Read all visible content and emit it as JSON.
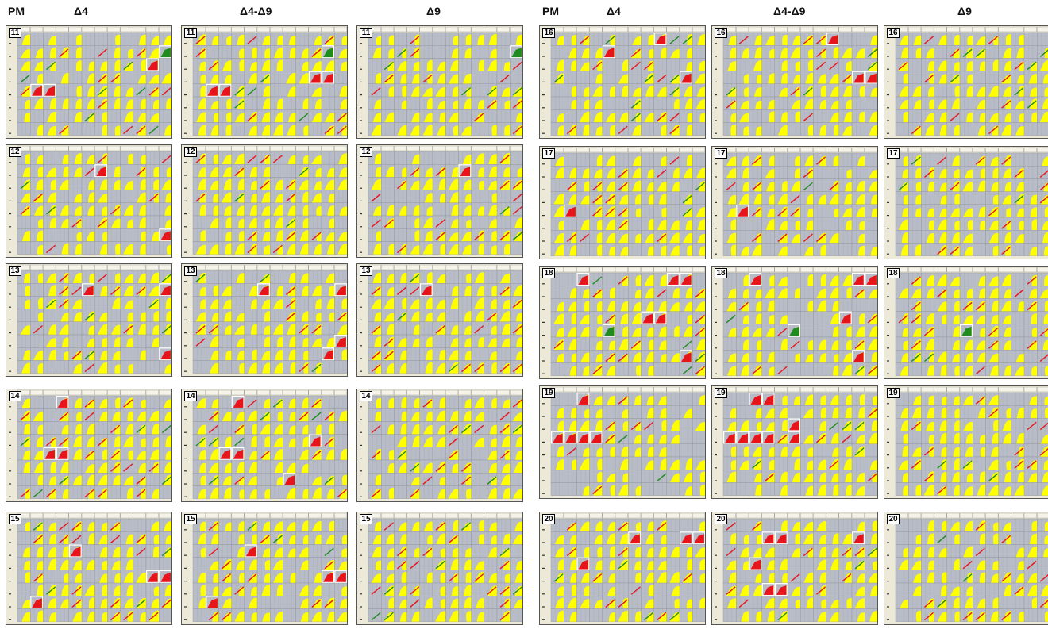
{
  "headers": {
    "left": {
      "pm": "PM",
      "d4": "Δ4",
      "d49": "Δ4-Δ9",
      "d9": "Δ9"
    },
    "right": {
      "pm": "PM",
      "d4": "Δ4",
      "d49": "Δ4-Δ9",
      "d9": "Δ9"
    }
  },
  "colors": {
    "panel_bg": "#ece9d8",
    "well_gray": "#b8bcc6",
    "curve_yellow": "#ffff00",
    "gain_red": "#e8141c",
    "loss_green": "#1e8c1e",
    "highlight_border": "#ffffff"
  },
  "chart_data": {
    "type": "heatmap",
    "description_rows": [
      "A",
      "B",
      "C",
      "D",
      "E",
      "F",
      "G",
      "H"
    ],
    "columns": [
      1,
      2,
      3,
      4,
      5,
      6,
      7,
      8,
      9,
      10,
      11,
      12
    ],
    "columns_labels": [
      "Δ4",
      "Δ4-Δ9",
      "Δ9"
    ],
    "plates": [
      {
        "pm": "11",
        "side": "left",
        "row": 0
      },
      {
        "pm": "12",
        "side": "left",
        "row": 1
      },
      {
        "pm": "13",
        "side": "left",
        "row": 2
      },
      {
        "pm": "14",
        "side": "left",
        "row": 3
      },
      {
        "pm": "15",
        "side": "left",
        "row": 4
      },
      {
        "pm": "16",
        "side": "right",
        "row": 0
      },
      {
        "pm": "17",
        "side": "right",
        "row": 1
      },
      {
        "pm": "18",
        "side": "right",
        "row": 2
      },
      {
        "pm": "19",
        "side": "right",
        "row": 3
      },
      {
        "pm": "20",
        "side": "right",
        "row": 4
      }
    ],
    "highlighted_wells": {
      "11": {
        "d4": [
          [
            5,
            2,
            "r"
          ],
          [
            5,
            3,
            "r"
          ],
          [
            3,
            11,
            "r"
          ],
          [
            2,
            12,
            "g"
          ]
        ],
        "d49": [
          [
            5,
            2,
            "r"
          ],
          [
            5,
            3,
            "r"
          ],
          [
            4,
            10,
            "r"
          ],
          [
            4,
            11,
            "r"
          ],
          [
            2,
            11,
            "g"
          ]
        ],
        "d9": [
          [
            2,
            12,
            "g"
          ]
        ]
      },
      "12": {
        "d4": [
          [
            2,
            7,
            "r"
          ],
          [
            7,
            12,
            "r"
          ]
        ],
        "d49": [],
        "d9": [
          [
            2,
            8,
            "r"
          ]
        ]
      },
      "13": {
        "d4": [
          [
            2,
            6,
            "r"
          ],
          [
            2,
            12,
            "r"
          ],
          [
            7,
            12,
            "r"
          ]
        ],
        "d49": [
          [
            2,
            6,
            "r"
          ],
          [
            2,
            12,
            "r"
          ],
          [
            6,
            12,
            "r"
          ],
          [
            7,
            11,
            "r"
          ]
        ],
        "d9": [
          [
            2,
            5,
            "r"
          ]
        ]
      },
      "14": {
        "d4": [
          [
            1,
            4,
            "r"
          ],
          [
            5,
            3,
            "r"
          ],
          [
            5,
            4,
            "r"
          ]
        ],
        "d49": [
          [
            1,
            4,
            "r"
          ],
          [
            5,
            3,
            "r"
          ],
          [
            5,
            4,
            "r"
          ],
          [
            4,
            10,
            "r"
          ],
          [
            7,
            8,
            "r"
          ]
        ],
        "d9": []
      },
      "15": {
        "d4": [
          [
            3,
            5,
            "r"
          ],
          [
            5,
            11,
            "r"
          ],
          [
            5,
            12,
            "r"
          ],
          [
            7,
            2,
            "r"
          ]
        ],
        "d49": [
          [
            3,
            5,
            "r"
          ],
          [
            5,
            11,
            "r"
          ],
          [
            5,
            12,
            "r"
          ],
          [
            7,
            2,
            "r"
          ]
        ],
        "d9": []
      },
      "16": {
        "d4": [
          [
            2,
            5,
            "r"
          ],
          [
            4,
            11,
            "r"
          ],
          [
            1,
            9,
            "r"
          ]
        ],
        "d49": [
          [
            1,
            9,
            "r"
          ],
          [
            4,
            11,
            "r"
          ],
          [
            4,
            12,
            "r"
          ]
        ],
        "d9": []
      },
      "17": {
        "d4": [
          [
            5,
            2,
            "r"
          ]
        ],
        "d49": [
          [
            5,
            2,
            "r"
          ]
        ],
        "d9": []
      },
      "18": {
        "d4": [
          [
            1,
            3,
            "r"
          ],
          [
            4,
            8,
            "r"
          ],
          [
            4,
            9,
            "r"
          ],
          [
            5,
            5,
            "g"
          ],
          [
            7,
            11,
            "r"
          ],
          [
            1,
            10,
            "r"
          ],
          [
            1,
            11,
            "r"
          ]
        ],
        "d49": [
          [
            1,
            3,
            "r"
          ],
          [
            4,
            10,
            "r"
          ],
          [
            5,
            6,
            "g"
          ],
          [
            7,
            11,
            "r"
          ],
          [
            1,
            11,
            "r"
          ],
          [
            1,
            12,
            "r"
          ]
        ],
        "d9": [
          [
            5,
            6,
            "g"
          ]
        ]
      },
      "19": {
        "d4": [
          [
            1,
            3,
            "r"
          ],
          [
            4,
            1,
            "r"
          ],
          [
            4,
            2,
            "r"
          ],
          [
            4,
            3,
            "r"
          ],
          [
            4,
            4,
            "r"
          ]
        ],
        "d49": [
          [
            1,
            3,
            "r"
          ],
          [
            1,
            4,
            "r"
          ],
          [
            3,
            6,
            "r"
          ],
          [
            4,
            1,
            "r"
          ],
          [
            4,
            2,
            "r"
          ],
          [
            4,
            3,
            "r"
          ],
          [
            4,
            4,
            "r"
          ],
          [
            4,
            6,
            "r"
          ]
        ],
        "d9": []
      },
      "20": {
        "d4": [
          [
            2,
            7,
            "r"
          ],
          [
            2,
            11,
            "r"
          ],
          [
            4,
            3,
            "r"
          ],
          [
            2,
            12,
            "r"
          ]
        ],
        "d49": [
          [
            2,
            4,
            "r"
          ],
          [
            2,
            5,
            "r"
          ],
          [
            4,
            3,
            "r"
          ],
          [
            6,
            4,
            "r"
          ],
          [
            6,
            5,
            "r"
          ],
          [
            2,
            11,
            "r"
          ]
        ],
        "d9": []
      }
    }
  },
  "plate_labels": {
    "l0": "11",
    "l1": "11",
    "l2": "11",
    "l3": "12",
    "l4": "12",
    "l5": "12",
    "l6": "13",
    "l7": "13",
    "l8": "13",
    "l9": "14",
    "l10": "14",
    "l11": "14",
    "l12": "15",
    "l13": "15",
    "l14": "15",
    "r0": "16",
    "r1": "16",
    "r2": "16",
    "r3": "17",
    "r4": "17",
    "r5": "17",
    "r6": "18",
    "r7": "18",
    "r8": "18",
    "r9": "19",
    "r10": "19",
    "r11": "19",
    "r12": "20",
    "r13": "20",
    "r14": "20"
  }
}
